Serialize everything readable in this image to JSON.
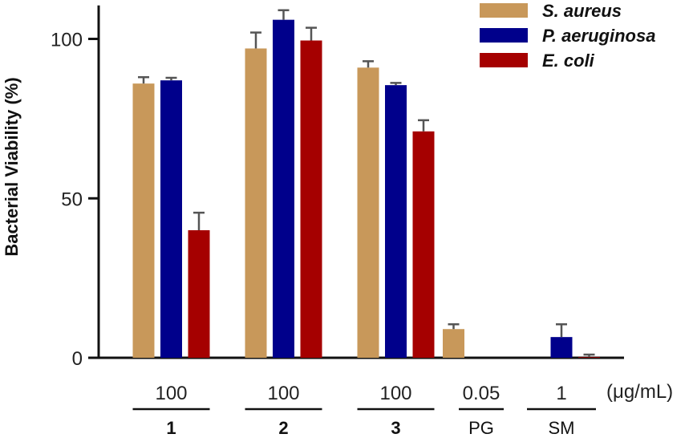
{
  "chart_data": {
    "type": "bar",
    "title": "",
    "xlabel": "",
    "ylabel": "Bacterial Viability (%)",
    "ylim": [
      0,
      110
    ],
    "yticks": [
      0,
      50,
      100
    ],
    "unit": "(μg/mL)",
    "groups": [
      {
        "concentration": "100",
        "label": "1",
        "bold": true
      },
      {
        "concentration": "100",
        "label": "2",
        "bold": true
      },
      {
        "concentration": "100",
        "label": "3",
        "bold": true
      },
      {
        "concentration": "0.05",
        "label": "PG",
        "bold": false
      },
      {
        "concentration": "1",
        "label": "SM",
        "bold": false
      }
    ],
    "series": [
      {
        "name": "S. aureus",
        "color": "#C8985A",
        "values": [
          86,
          97,
          91,
          9,
          null
        ],
        "errors": [
          2,
          5,
          2,
          1.5,
          null
        ]
      },
      {
        "name": "P. aeruginosa",
        "color": "#00008B",
        "values": [
          87,
          106,
          85.5,
          null,
          6.5
        ],
        "errors": [
          0.8,
          3,
          0.7,
          null,
          4
        ]
      },
      {
        "name": "E. coli",
        "color": "#A50000",
        "values": [
          40,
          99.5,
          71,
          null,
          0.2
        ],
        "errors": [
          5.5,
          4,
          3.5,
          null,
          0.8
        ]
      }
    ],
    "legend_position": "top-right",
    "grid": false
  }
}
